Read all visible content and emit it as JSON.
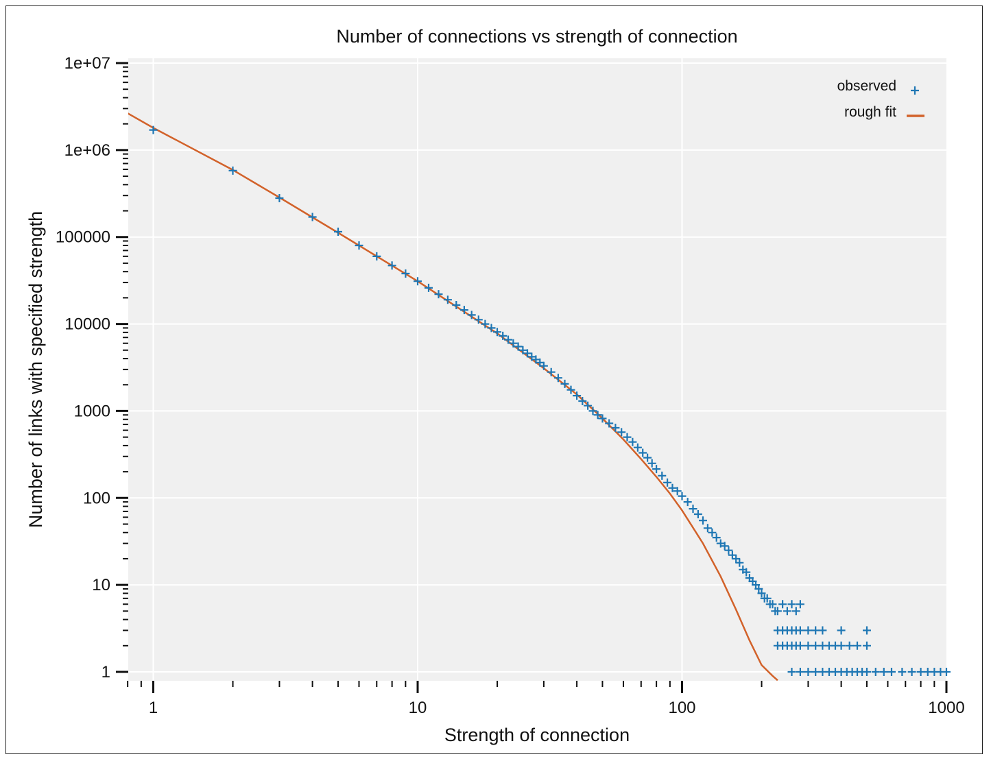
{
  "chart_data": {
    "type": "scatter",
    "title": "Number of connections vs strength of connection",
    "xlabel": "Strength of connection",
    "ylabel": "Number of links with specified strength",
    "x_scale": "log",
    "y_scale": "log",
    "xlim": [
      0.8,
      1000
    ],
    "ylim": [
      0.8,
      10000000
    ],
    "x_tick_labels": [
      "1",
      "10",
      "100",
      "1000"
    ],
    "x_tick_values": [
      1,
      10,
      100,
      1000
    ],
    "y_tick_labels": [
      "1",
      "10",
      "100",
      "1000",
      "10000",
      "100000",
      "1e+06",
      "1e+07"
    ],
    "y_tick_values": [
      1,
      10,
      100,
      1000,
      10000,
      100000,
      1000000,
      10000000
    ],
    "grid": true,
    "legend_position": "top-right",
    "colors": {
      "observed": "#1f77b4",
      "fit": "#d2622a",
      "plot_bg": "#f0f0f0",
      "grid": "#ffffff"
    },
    "series": [
      {
        "name": "observed",
        "marker": "+",
        "points": [
          [
            1,
            1700000
          ],
          [
            2,
            580000
          ],
          [
            3,
            280000
          ],
          [
            4,
            170000
          ],
          [
            5,
            115000
          ],
          [
            6,
            80000
          ],
          [
            7,
            60000
          ],
          [
            8,
            47000
          ],
          [
            9,
            38000
          ],
          [
            10,
            31000
          ],
          [
            11,
            26000
          ],
          [
            12,
            22000
          ],
          [
            13,
            19000
          ],
          [
            14,
            16500
          ],
          [
            15,
            14500
          ],
          [
            16,
            12700
          ],
          [
            17,
            11200
          ],
          [
            18,
            10000
          ],
          [
            19,
            9000
          ],
          [
            20,
            8100
          ],
          [
            21,
            7300
          ],
          [
            22,
            6600
          ],
          [
            23,
            6000
          ],
          [
            24,
            5500
          ],
          [
            25,
            5000
          ],
          [
            26,
            4600
          ],
          [
            27,
            4200
          ],
          [
            28,
            3900
          ],
          [
            29,
            3600
          ],
          [
            30,
            3300
          ],
          [
            32,
            2800
          ],
          [
            34,
            2400
          ],
          [
            36,
            2050
          ],
          [
            38,
            1750
          ],
          [
            40,
            1500
          ],
          [
            42,
            1300
          ],
          [
            44,
            1150
          ],
          [
            46,
            1000
          ],
          [
            48,
            900
          ],
          [
            50,
            820
          ],
          [
            53,
            720
          ],
          [
            56,
            640
          ],
          [
            59,
            570
          ],
          [
            62,
            500
          ],
          [
            65,
            440
          ],
          [
            68,
            380
          ],
          [
            71,
            330
          ],
          [
            74,
            290
          ],
          [
            77,
            250
          ],
          [
            80,
            215
          ],
          [
            84,
            180
          ],
          [
            88,
            150
          ],
          [
            92,
            130
          ],
          [
            96,
            120
          ],
          [
            100,
            105
          ],
          [
            105,
            90
          ],
          [
            110,
            75
          ],
          [
            115,
            65
          ],
          [
            120,
            55
          ],
          [
            125,
            45
          ],
          [
            130,
            40
          ],
          [
            135,
            35
          ],
          [
            140,
            30
          ],
          [
            145,
            28
          ],
          [
            150,
            25
          ],
          [
            155,
            22
          ],
          [
            160,
            20
          ],
          [
            165,
            18
          ],
          [
            170,
            15
          ],
          [
            175,
            14
          ],
          [
            180,
            12
          ],
          [
            185,
            11
          ],
          [
            190,
            10
          ],
          [
            195,
            9
          ],
          [
            200,
            8
          ],
          [
            205,
            7
          ],
          [
            210,
            7
          ],
          [
            215,
            6
          ],
          [
            220,
            6
          ],
          [
            225,
            5
          ],
          [
            230,
            5
          ],
          [
            240,
            6
          ],
          [
            250,
            5
          ],
          [
            260,
            6
          ],
          [
            270,
            5
          ],
          [
            280,
            6
          ],
          [
            230,
            3
          ],
          [
            240,
            3
          ],
          [
            250,
            3
          ],
          [
            260,
            3
          ],
          [
            270,
            3
          ],
          [
            280,
            3
          ],
          [
            300,
            3
          ],
          [
            320,
            3
          ],
          [
            340,
            3
          ],
          [
            400,
            3
          ],
          [
            500,
            3
          ],
          [
            230,
            2
          ],
          [
            240,
            2
          ],
          [
            250,
            2
          ],
          [
            260,
            2
          ],
          [
            270,
            2
          ],
          [
            280,
            2
          ],
          [
            300,
            2
          ],
          [
            320,
            2
          ],
          [
            340,
            2
          ],
          [
            360,
            2
          ],
          [
            380,
            2
          ],
          [
            400,
            2
          ],
          [
            430,
            2
          ],
          [
            460,
            2
          ],
          [
            500,
            2
          ],
          [
            260,
            1
          ],
          [
            280,
            1
          ],
          [
            300,
            1
          ],
          [
            320,
            1
          ],
          [
            340,
            1
          ],
          [
            360,
            1
          ],
          [
            380,
            1
          ],
          [
            400,
            1
          ],
          [
            420,
            1
          ],
          [
            440,
            1
          ],
          [
            460,
            1
          ],
          [
            480,
            1
          ],
          [
            500,
            1
          ],
          [
            540,
            1
          ],
          [
            580,
            1
          ],
          [
            620,
            1
          ],
          [
            680,
            1
          ],
          [
            740,
            1
          ],
          [
            800,
            1
          ],
          [
            850,
            1
          ],
          [
            900,
            1
          ],
          [
            950,
            1
          ],
          [
            1000,
            1
          ]
        ]
      },
      {
        "name": "rough fit",
        "marker": "line",
        "points": [
          [
            0.8,
            2650000
          ],
          [
            1,
            1800000
          ],
          [
            2,
            590000
          ],
          [
            3,
            285000
          ],
          [
            5,
            112000
          ],
          [
            10,
            31000
          ],
          [
            20,
            7800
          ],
          [
            30,
            3100
          ],
          [
            40,
            1550
          ],
          [
            50,
            820
          ],
          [
            60,
            470
          ],
          [
            70,
            280
          ],
          [
            80,
            175
          ],
          [
            90,
            112
          ],
          [
            100,
            72
          ],
          [
            120,
            30
          ],
          [
            140,
            12.5
          ],
          [
            160,
            5.2
          ],
          [
            180,
            2.3
          ],
          [
            200,
            1.2
          ],
          [
            220,
            0.9
          ],
          [
            230,
            0.8
          ]
        ]
      }
    ]
  }
}
